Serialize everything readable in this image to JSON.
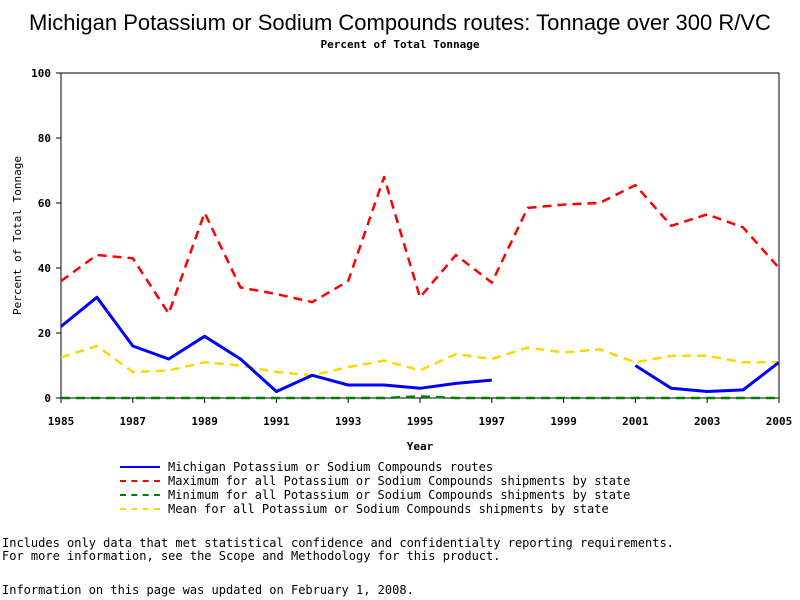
{
  "title": "Michigan Potassium or Sodium Compounds routes: Tonnage over 300 R/VC",
  "subtitle": "Percent of Total Tonnage",
  "notes": {
    "line1": "Includes only data that met statistical confidence and confidentialty reporting requirements.",
    "line2": "For more information, see the Scope and Methodology for this product.",
    "line3": "Information on this page was updated on February 1, 2008."
  },
  "chart_data": {
    "type": "line",
    "xlabel": "Year",
    "ylabel": "Percent of Total Tonnage",
    "xlim": [
      1985,
      2005
    ],
    "ylim": [
      0,
      100
    ],
    "x_ticks": [
      1985,
      1987,
      1989,
      1991,
      1993,
      1995,
      1997,
      1999,
      2001,
      2003,
      2005
    ],
    "y_ticks": [
      0,
      20,
      40,
      60,
      80,
      100
    ],
    "grid": false,
    "legend_position": "bottom",
    "series": [
      {
        "name": "Michigan Potassium or Sodium Compounds routes",
        "color": "#0000ff",
        "style": "solid",
        "x": [
          1985,
          1986,
          1987,
          1988,
          1989,
          1990,
          1991,
          1992,
          1993,
          1994,
          1995,
          1996,
          1997,
          2001,
          2002,
          2003,
          2004,
          2005
        ],
        "values": [
          22,
          31,
          16,
          12,
          19,
          12,
          2,
          7,
          4,
          4,
          3,
          4.5,
          5.5,
          10,
          3,
          2,
          2.5,
          11
        ],
        "segments": [
          [
            1985,
            1997
          ],
          [
            2001,
            2005
          ]
        ]
      },
      {
        "name": "Maximum for all Potassium or Sodium Compounds shipments by state",
        "color": "#ff0000",
        "style": "dashed",
        "x": [
          1985,
          1986,
          1987,
          1988,
          1989,
          1990,
          1991,
          1992,
          1993,
          1994,
          1995,
          1996,
          1997,
          1998,
          1999,
          2000,
          2001,
          2002,
          2003,
          2004,
          2005
        ],
        "values": [
          36,
          44,
          43,
          26,
          57,
          34,
          32,
          29.5,
          36,
          68,
          31,
          44,
          35.5,
          58.5,
          59.5,
          60,
          65.5,
          53,
          56.5,
          52.5,
          40
        ]
      },
      {
        "name": "Minimum for all Potassium or Sodium Compounds shipments by state",
        "color": "#008000",
        "style": "dashed",
        "x": [
          1985,
          1986,
          1987,
          1988,
          1989,
          1990,
          1991,
          1992,
          1993,
          1994,
          1995,
          1996,
          1997,
          1998,
          1999,
          2000,
          2001,
          2002,
          2003,
          2004,
          2005
        ],
        "values": [
          0,
          0,
          0,
          0,
          0,
          0,
          0,
          0,
          0,
          0,
          0.5,
          0,
          0,
          0,
          0,
          0,
          0,
          0,
          0,
          0,
          0
        ]
      },
      {
        "name": "Mean for all Potassium or Sodium Compounds shipments by state",
        "color": "#ffd700",
        "style": "dashed",
        "x": [
          1985,
          1986,
          1987,
          1988,
          1989,
          1990,
          1991,
          1992,
          1993,
          1994,
          1995,
          1996,
          1997,
          1998,
          1999,
          2000,
          2001,
          2002,
          2003,
          2004,
          2005
        ],
        "values": [
          12.5,
          16,
          8,
          8.5,
          11,
          10,
          8,
          7,
          9.5,
          11.5,
          8.5,
          13.5,
          12,
          15.5,
          14,
          15,
          11,
          13,
          13,
          11,
          11
        ]
      }
    ]
  }
}
